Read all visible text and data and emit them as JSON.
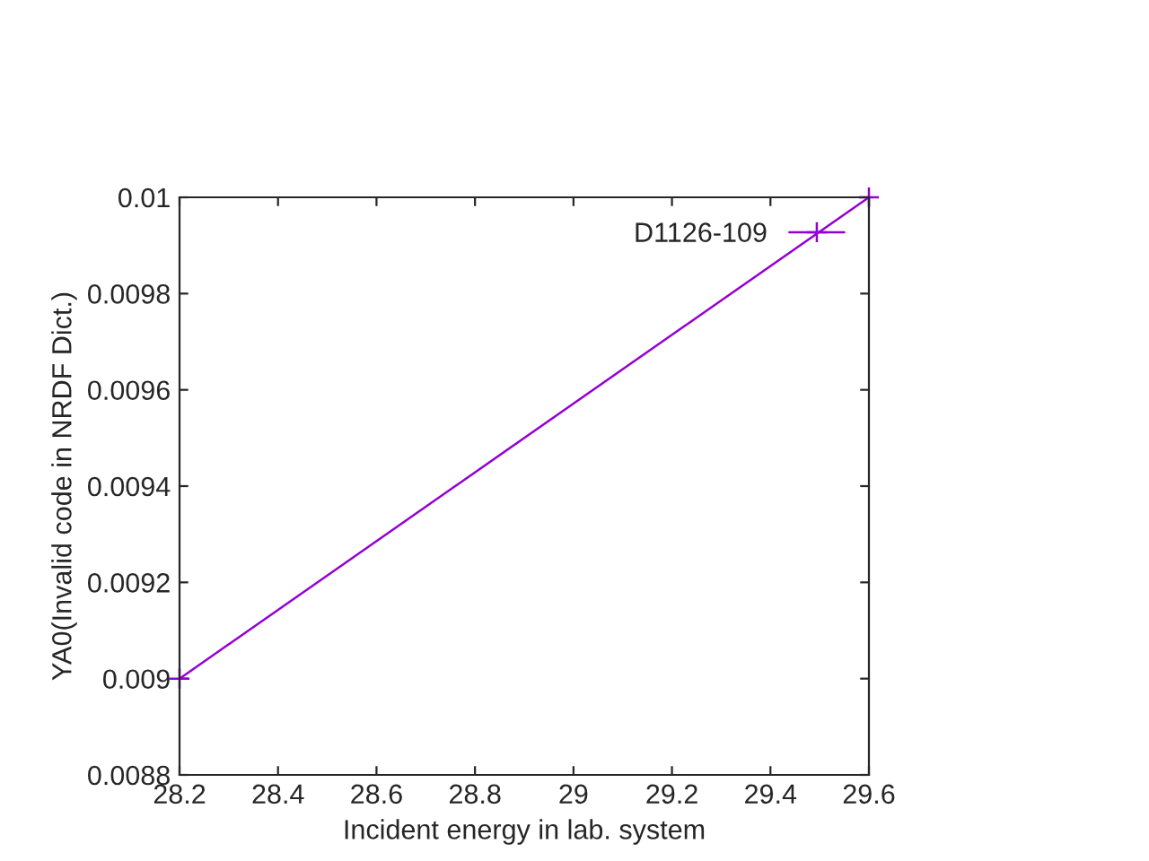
{
  "chart_data": {
    "type": "line",
    "xlabel": "Incident energy in lab. system",
    "ylabel": "YA0(Invalid code in NRDF Dict.)",
    "x": [
      28.2,
      29.6
    ],
    "series": [
      {
        "name": "D1126-109",
        "color": "#9400d3",
        "values": [
          0.009,
          0.01
        ]
      }
    ],
    "xlim": [
      28.2,
      29.6
    ],
    "xticks": [
      28.2,
      28.4,
      28.6,
      28.8,
      29,
      29.2,
      29.4,
      29.6
    ],
    "ylim": [
      0.0088,
      0.01
    ],
    "yticks": [
      0.0088,
      0.009,
      0.0092,
      0.0094,
      0.0096,
      0.0098,
      0.01
    ],
    "marker": "cross",
    "line_style": "solid",
    "grid": false,
    "legend": "top right"
  }
}
